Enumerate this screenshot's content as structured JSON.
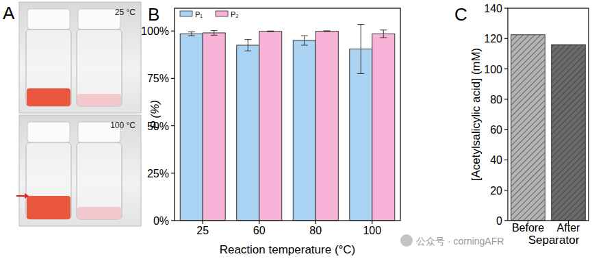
{
  "chart_data": [
    {
      "type": "bar",
      "annotations": [
        "B"
      ],
      "x_label": "Reaction temperature (°C)",
      "y_label": "P (%)",
      "categories": [
        "25",
        "60",
        "80",
        "100"
      ],
      "series": [
        {
          "name": "P₁",
          "color": "#a9d2f3",
          "values": [
            98.5,
            92.5,
            95,
            90.5
          ],
          "errors": [
            1,
            3,
            2.5,
            13
          ]
        },
        {
          "name": "P₂",
          "color": "#f8b4d8",
          "values": [
            99,
            99.8,
            99.9,
            98.5
          ],
          "errors": [
            1.2,
            0.2,
            0.2,
            2
          ]
        }
      ],
      "ylim": [
        0,
        112
      ],
      "yticks": [
        {
          "value": 0,
          "label": "0%"
        },
        {
          "value": 25,
          "label": "25%"
        },
        {
          "value": 50,
          "label": "50%"
        },
        {
          "value": 75,
          "label": "75%"
        },
        {
          "value": 100,
          "label": "100%"
        }
      ],
      "legend": "upper left",
      "grid": false
    },
    {
      "type": "bar",
      "annotations": [
        "C"
      ],
      "x_label": "Separator",
      "y_label": "[Acetylsalicylic acid] (mM)",
      "categories": [
        "Before",
        "After"
      ],
      "values": [
        122.5,
        116
      ],
      "colors": [
        "#b4b4b4",
        "#6a6a6a"
      ],
      "ylim": [
        0,
        140
      ],
      "yticks": [
        0,
        20,
        40,
        60,
        80,
        100,
        120,
        140
      ],
      "grid": false
    }
  ],
  "photo_panel": {
    "label": "A",
    "captions": [
      "25 °C",
      "100 °C"
    ]
  },
  "watermark": "公众号 · corningAFR"
}
